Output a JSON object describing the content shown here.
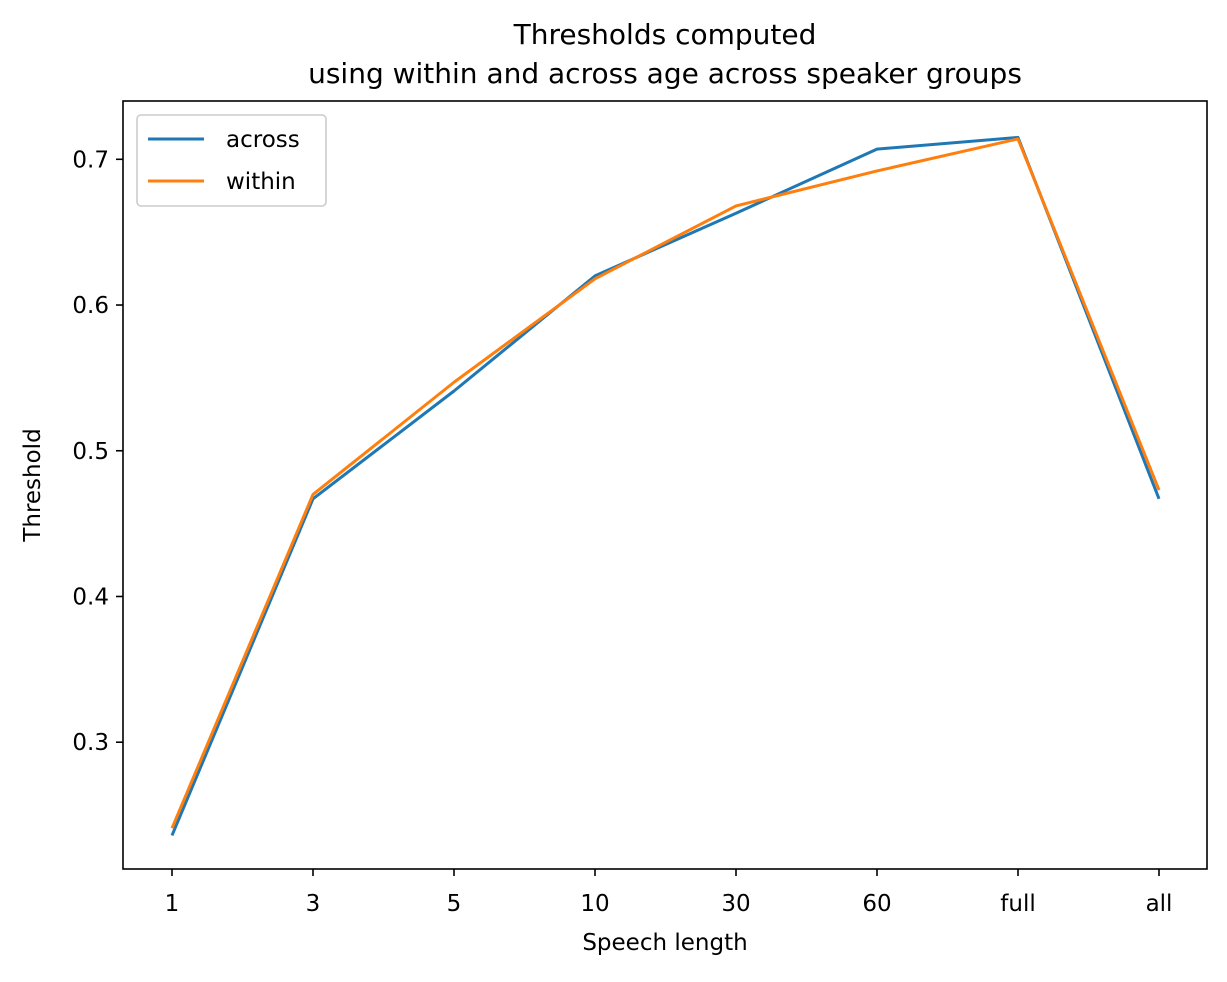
{
  "chart_data": {
    "type": "line",
    "title_lines": [
      "Thresholds computed",
      "using within and across age across speaker groups"
    ],
    "xlabel": "Speech length",
    "ylabel": "Threshold",
    "categories": [
      "1",
      "3",
      "5",
      "10",
      "30",
      "60",
      "full",
      "all"
    ],
    "ylim": [
      0.213,
      0.74
    ],
    "yticks": [
      "0.3",
      "0.4",
      "0.5",
      "0.6",
      "0.7"
    ],
    "grid": false,
    "legend_position": "top-left",
    "series": [
      {
        "name": "across",
        "color": "#1f77b4",
        "values": [
          0.236,
          0.467,
          0.541,
          0.62,
          0.663,
          0.707,
          0.715,
          0.467
        ]
      },
      {
        "name": "within",
        "color": "#ff7f0e",
        "values": [
          0.241,
          0.47,
          0.547,
          0.618,
          0.668,
          0.692,
          0.714,
          0.473
        ]
      }
    ]
  }
}
